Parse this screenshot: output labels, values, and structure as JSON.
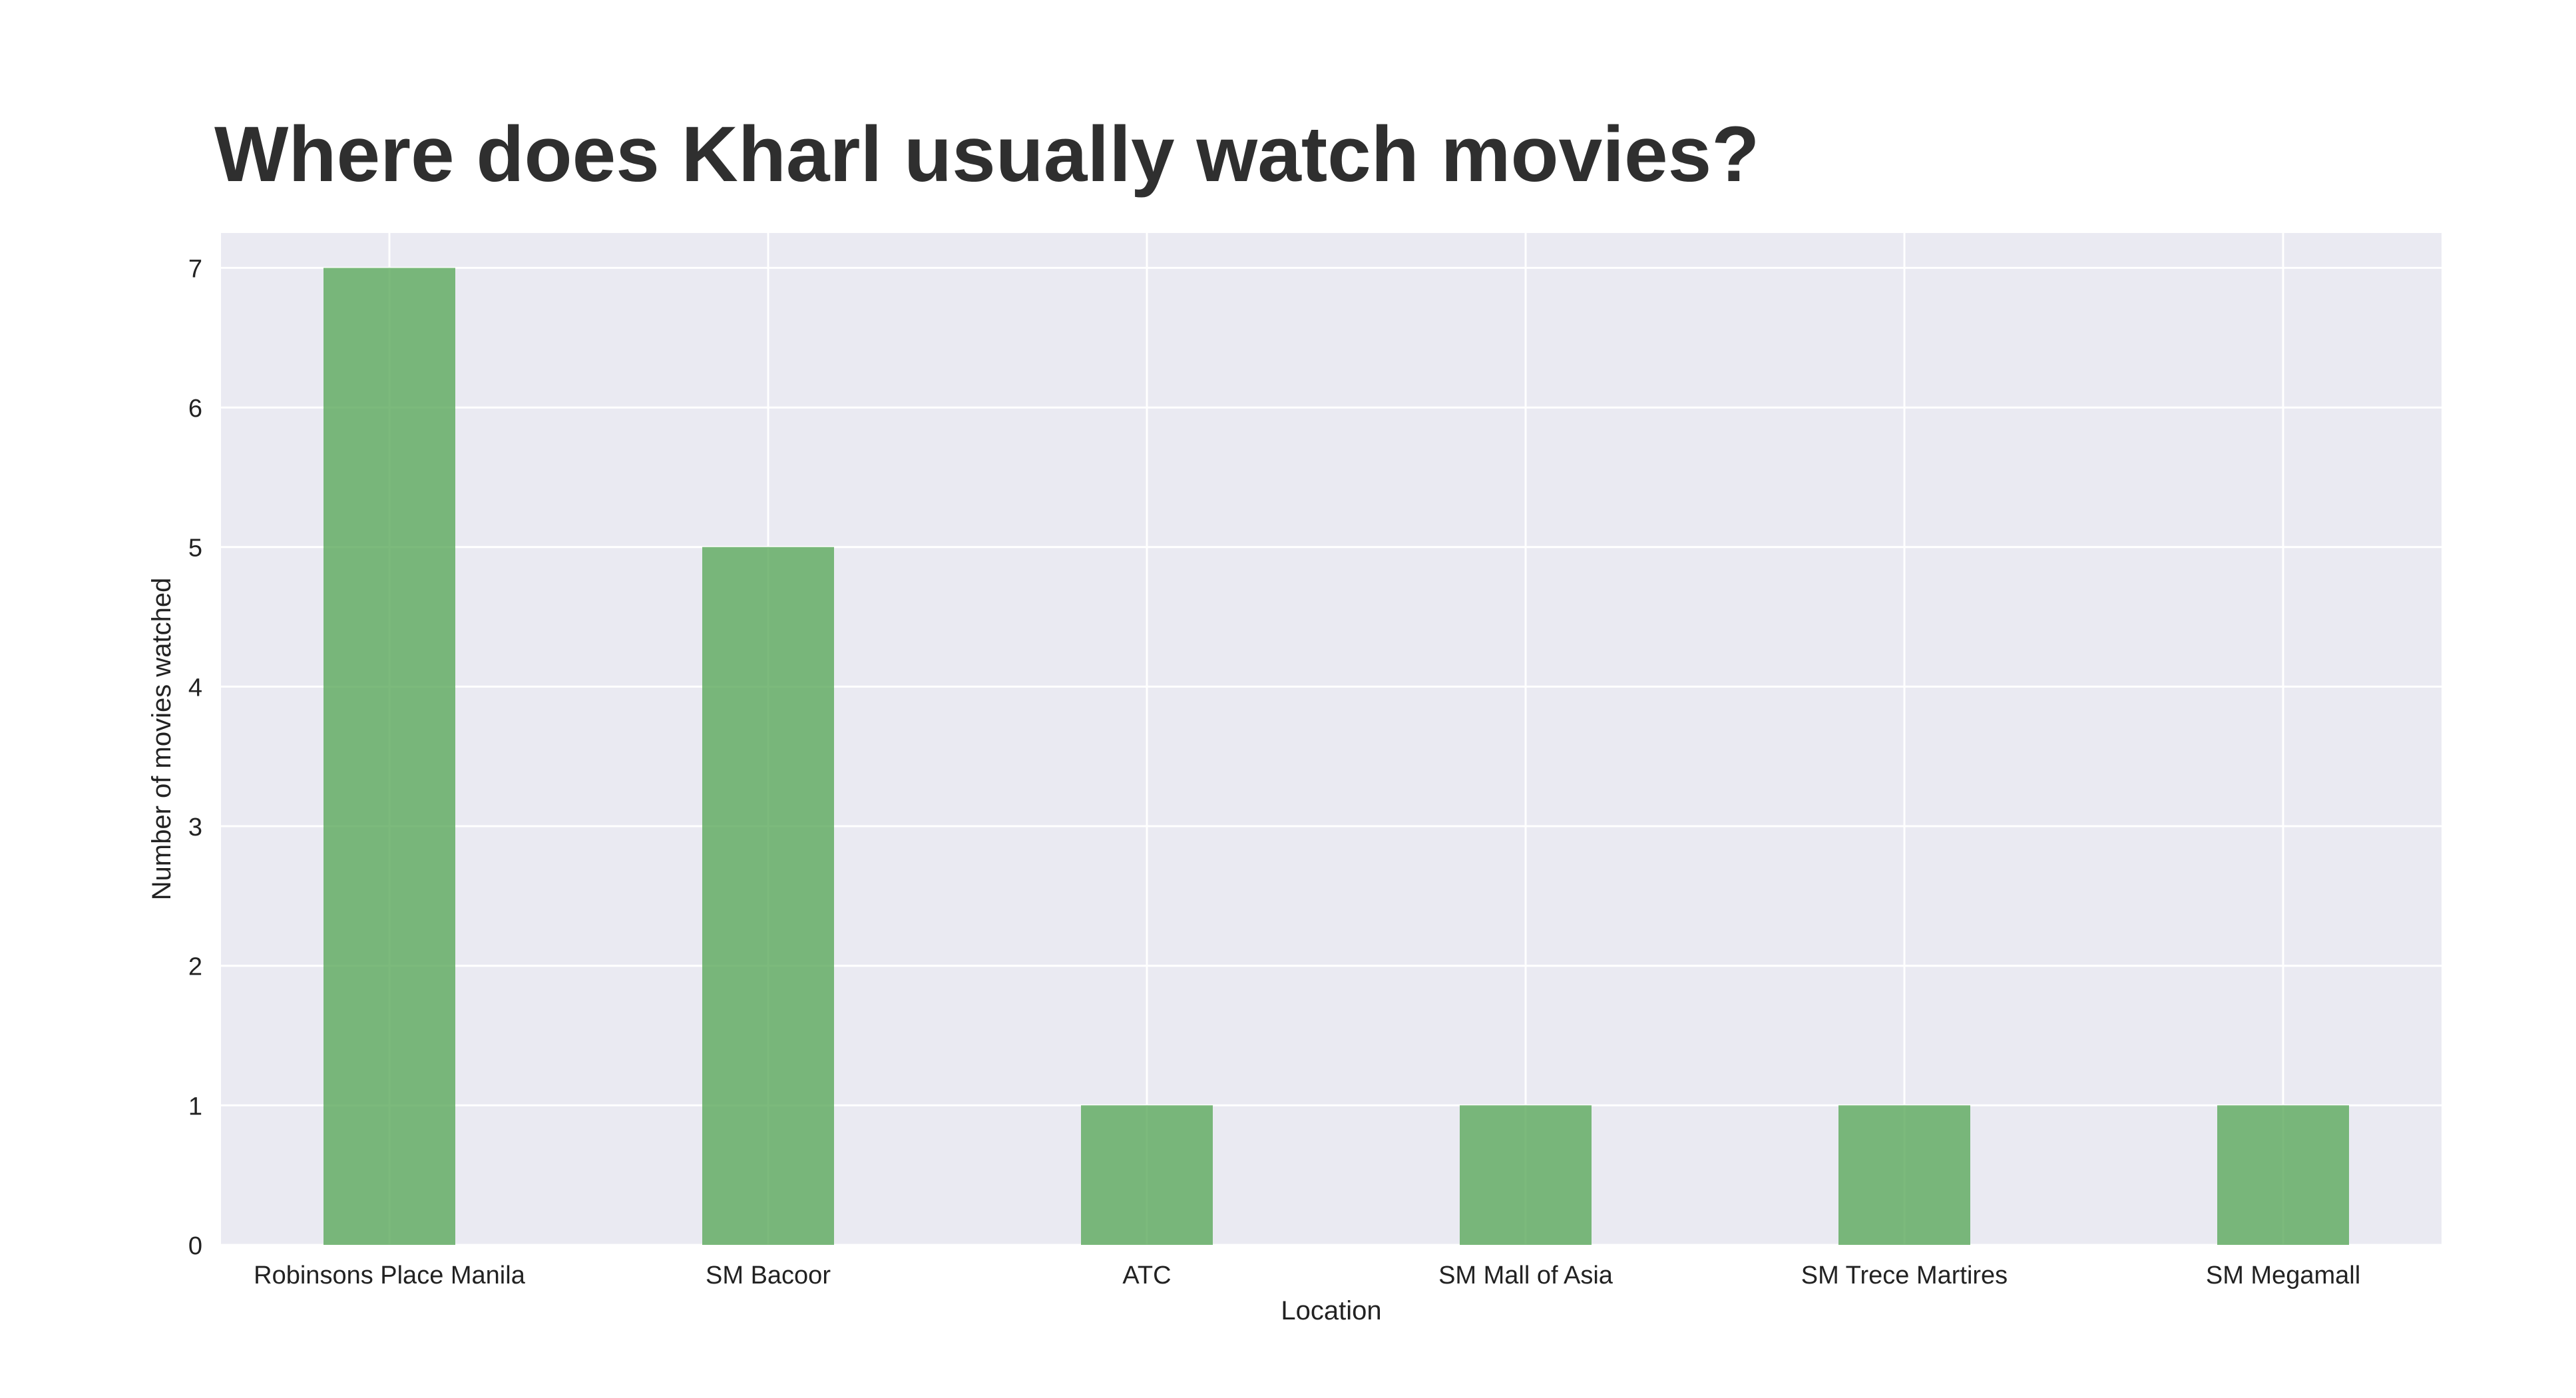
{
  "chart_data": {
    "type": "bar",
    "title": "Where does Kharl usually watch movies?",
    "xlabel": "Location",
    "ylabel": "Number of movies watched",
    "categories": [
      "Robinsons Place Manila",
      "SM Bacoor",
      "ATC",
      "SM Mall of Asia",
      "SM Trece Martires",
      "SM Megamall"
    ],
    "values": [
      7,
      5,
      1,
      1,
      1,
      1
    ],
    "ylim": [
      0,
      7.25
    ],
    "yticks": [
      "0",
      "1",
      "2",
      "3",
      "4",
      "5",
      "6",
      "7"
    ],
    "grid": true,
    "colors": {
      "bar": "#5fab5f",
      "plot_background": "#eaeaf2",
      "grid": "#ffffff",
      "title": "#2f2f2f",
      "text": "#222222"
    }
  }
}
